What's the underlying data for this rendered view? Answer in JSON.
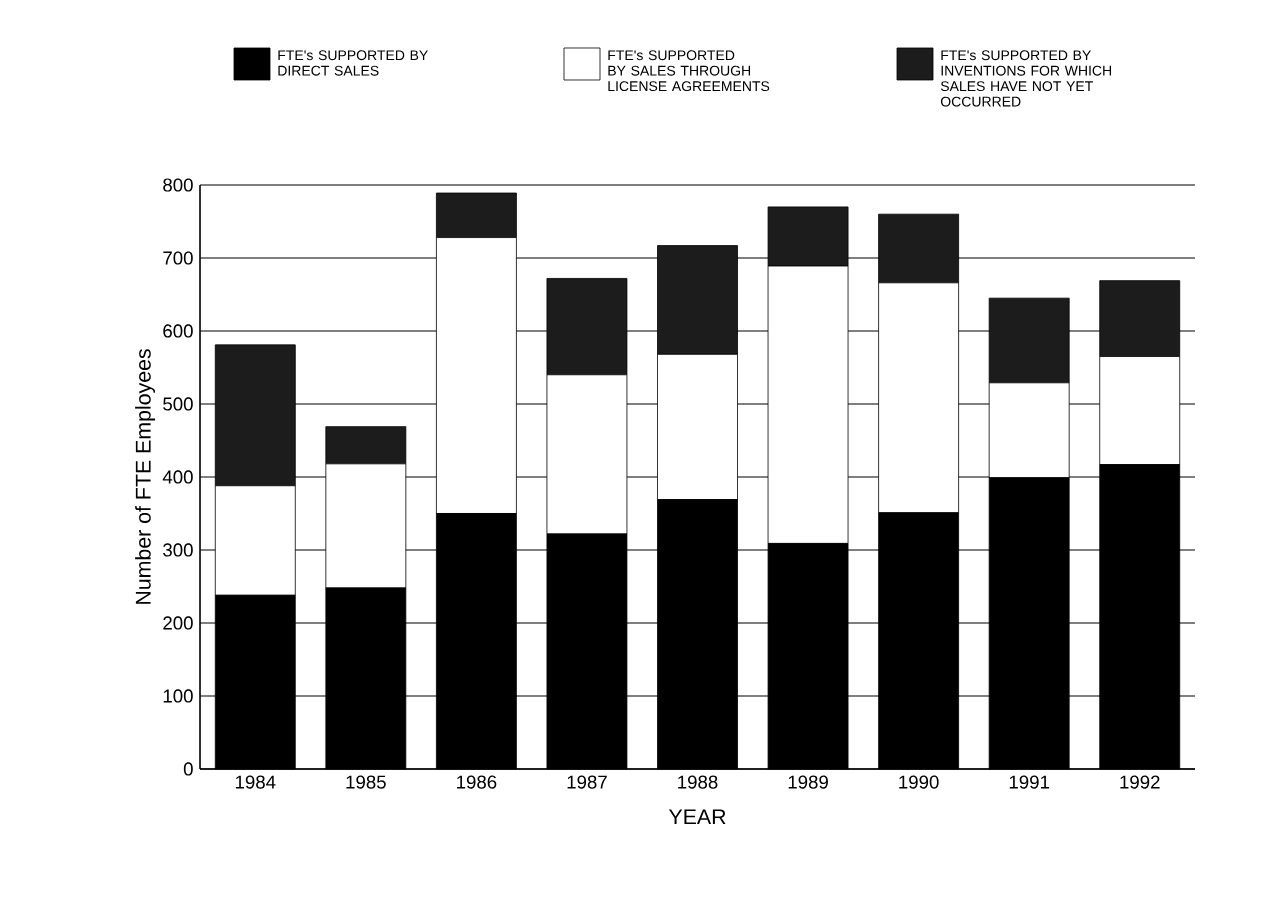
{
  "chart_data": {
    "type": "bar",
    "stacked": true,
    "xlabel": "YEAR",
    "ylabel": "Number of FTE Employees",
    "categories": [
      "1984",
      "1985",
      "1986",
      "1987",
      "1988",
      "1989",
      "1990",
      "1991",
      "1992"
    ],
    "series": [
      {
        "name": "FTE's SUPPORTED BY DIRECT SALES",
        "color": "#000000",
        "values": [
          238,
          248,
          350,
          322,
          369,
          309,
          351,
          399,
          417
        ]
      },
      {
        "name": "FTE's SUPPORTED BY SALES THROUGH LICENSE AGREEMENTS",
        "color": "#ffffff",
        "values": [
          150,
          170,
          378,
          218,
          199,
          380,
          315,
          130,
          148
        ]
      },
      {
        "name": "FTE's SUPPORTED BY INVENTIONS FOR WHICH SALES HAVE NOT YET OCCURRED",
        "color": "#1c1c1c",
        "values": [
          193,
          51,
          61,
          132,
          149,
          81,
          94,
          116,
          104
        ]
      }
    ],
    "ylim": [
      0,
      800
    ],
    "yticks": [
      0,
      100,
      200,
      300,
      400,
      500,
      600,
      700,
      800
    ],
    "grid": "y",
    "legend": "top"
  }
}
